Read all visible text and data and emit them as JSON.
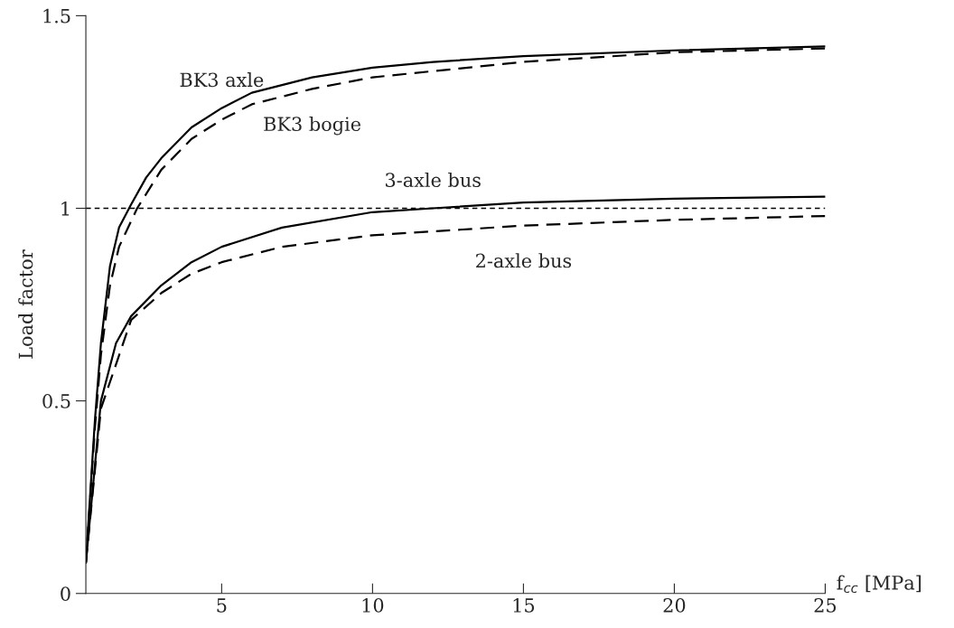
{
  "chart_data": {
    "type": "line",
    "xlabel": "f$_{cc}$ [MPa]",
    "ylabel": "Load factor",
    "xlim": [
      0.5,
      25
    ],
    "ylim": [
      0,
      1.5
    ],
    "xticks": [
      5,
      10,
      15,
      20,
      25
    ],
    "yticks": [
      0,
      0.5,
      1,
      1.5
    ],
    "grid": false,
    "legend": false,
    "marker": "none",
    "ref_lines": [
      {
        "axis": "y",
        "value": 1,
        "color": "#000000",
        "line_style": "dashed"
      }
    ],
    "series": [
      {
        "name": "BK3 axle",
        "color": "#000000",
        "line_style": "solid",
        "x": [
          0.5,
          0.8,
          1.0,
          1.3,
          1.6,
          2,
          2.5,
          3,
          4,
          5,
          6,
          7,
          8,
          10,
          12,
          15,
          20,
          25
        ],
        "values": [
          0.08,
          0.45,
          0.65,
          0.85,
          0.95,
          1.01,
          1.08,
          1.13,
          1.21,
          1.26,
          1.3,
          1.32,
          1.34,
          1.365,
          1.38,
          1.395,
          1.41,
          1.42
        ]
      },
      {
        "name": "BK3 bogie",
        "color": "#000000",
        "line_style": "dashed",
        "x": [
          0.5,
          0.8,
          1.0,
          1.3,
          1.6,
          2.2,
          3,
          4,
          5,
          6,
          8,
          10,
          15,
          20,
          25
        ],
        "values": [
          0.08,
          0.43,
          0.62,
          0.8,
          0.9,
          1.0,
          1.1,
          1.18,
          1.23,
          1.27,
          1.31,
          1.34,
          1.38,
          1.405,
          1.415
        ]
      },
      {
        "name": "3-axle bus",
        "color": "#000000",
        "line_style": "solid",
        "x": [
          0.5,
          1,
          1.5,
          2,
          3,
          4,
          5,
          7,
          10,
          12,
          15,
          20,
          25
        ],
        "values": [
          0.08,
          0.5,
          0.65,
          0.72,
          0.8,
          0.86,
          0.9,
          0.95,
          0.99,
          1.0,
          1.015,
          1.025,
          1.03
        ]
      },
      {
        "name": "2-axle bus",
        "color": "#000000",
        "line_style": "dashed",
        "x": [
          0.5,
          1,
          2,
          3,
          4,
          5,
          7,
          10,
          15,
          20,
          25
        ],
        "values": [
          0.08,
          0.48,
          0.71,
          0.78,
          0.83,
          0.86,
          0.9,
          0.93,
          0.955,
          0.97,
          0.98
        ]
      }
    ]
  }
}
